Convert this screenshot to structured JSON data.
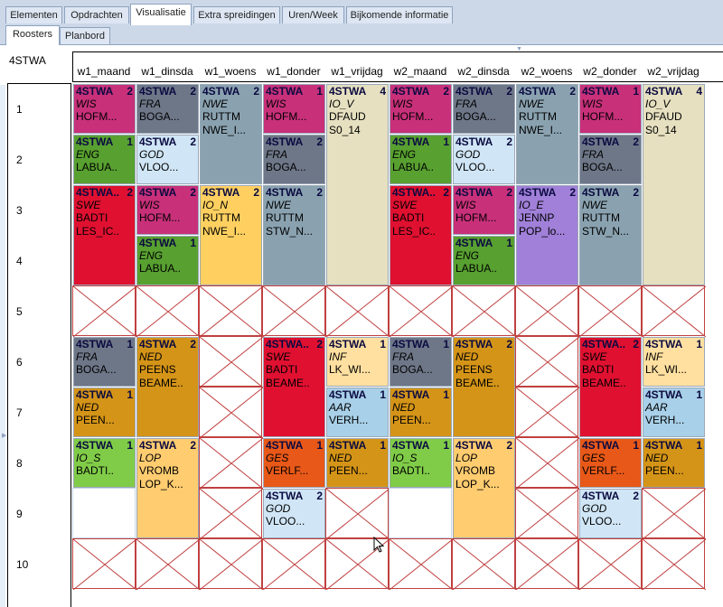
{
  "main_tabs": [
    {
      "label": "Elementen",
      "active": false
    },
    {
      "label": "Opdrachten",
      "active": false
    },
    {
      "label": "Visualisatie",
      "active": true
    },
    {
      "label": "Extra spreidingen",
      "active": false
    },
    {
      "label": "Uren/Week",
      "active": false
    },
    {
      "label": "Bijkomende informatie",
      "active": false
    }
  ],
  "sub_tabs": [
    {
      "label": "Roosters",
      "active": true
    },
    {
      "label": "Planbord",
      "active": false
    }
  ],
  "class_name": "4STWA",
  "days": [
    "w1_maand",
    "w1_dinsda",
    "w1_woens",
    "w1_donder",
    "w1_vrijdag",
    "w2_maand",
    "w2_dinsda",
    "w2_woens",
    "w2_donder",
    "w2_vrijdag"
  ],
  "periods": [
    "1",
    "2",
    "3",
    "4",
    "5",
    "6",
    "7",
    "8",
    "9",
    "10"
  ],
  "colors": {
    "WIS": "#c8307a",
    "FRA": "#6e7788",
    "NWE": "#8aa2b0",
    "IO_V": "#e6e0c0",
    "ENG": "#58a030",
    "GOD": "#d0e6f6",
    "SWE": "#e01030",
    "IO_N": "#ffd060",
    "IO_E": "#a080d8",
    "NED": "#d49418",
    "INF": "#ffe0a0",
    "AAR": "#a8d0e8",
    "IO_S": "#80cc48",
    "LOP": "#ffcc70",
    "GES": "#e85818"
  },
  "lessons": [
    {
      "day": 0,
      "start": 1,
      "len": 1,
      "cls": "4STWA",
      "count": "2",
      "subject": "WIS",
      "teacher": "HOFM..."
    },
    {
      "day": 0,
      "start": 2,
      "len": 1,
      "cls": "4STWA",
      "count": "1",
      "subject": "ENG",
      "teacher": "LABUA.."
    },
    {
      "day": 0,
      "start": 3,
      "len": 2,
      "cls": "4STWA..",
      "count": "2",
      "subject": "SWE",
      "teacher": "BADTI",
      "room": "LES_IC.."
    },
    {
      "day": 0,
      "start": 6,
      "len": 1,
      "cls": "4STWA",
      "count": "1",
      "subject": "FRA",
      "teacher": "BOGA..."
    },
    {
      "day": 0,
      "start": 7,
      "len": 1,
      "cls": "4STWA",
      "count": "1",
      "subject": "NED",
      "teacher": "PEEN..."
    },
    {
      "day": 0,
      "start": 8,
      "len": 1,
      "cls": "4STWA",
      "count": "1",
      "subject": "IO_S",
      "teacher": "BADTI.."
    },
    {
      "day": 1,
      "start": 1,
      "len": 1,
      "cls": "4STWA",
      "count": "2",
      "subject": "FRA",
      "teacher": "BOGA..."
    },
    {
      "day": 1,
      "start": 2,
      "len": 1,
      "cls": "4STWA",
      "count": "2",
      "subject": "GOD",
      "teacher": "VLOO..."
    },
    {
      "day": 1,
      "start": 3,
      "len": 1,
      "cls": "4STWA",
      "count": "2",
      "subject": "WIS",
      "teacher": "HOFM..."
    },
    {
      "day": 1,
      "start": 4,
      "len": 1,
      "cls": "4STWA",
      "count": "1",
      "subject": "ENG",
      "teacher": "LABUA.."
    },
    {
      "day": 1,
      "start": 6,
      "len": 2,
      "cls": "4STWA",
      "count": "2",
      "subject": "NED",
      "teacher": "PEENS",
      "room": "BEAME.."
    },
    {
      "day": 1,
      "start": 8,
      "len": 2,
      "cls": "4STWA",
      "count": "2",
      "subject": "LOP",
      "teacher": "VROMB",
      "room": "LOP_K..."
    },
    {
      "day": 2,
      "start": 1,
      "len": 2,
      "cls": "4STWA",
      "count": "2",
      "subject": "NWE",
      "teacher": "RUTTM",
      "room": "NWE_I..."
    },
    {
      "day": 2,
      "start": 3,
      "len": 2,
      "cls": "4STWA",
      "count": "2",
      "subject": "IO_N",
      "teacher": "RUTTM",
      "room": "NWE_I..."
    },
    {
      "day": 3,
      "start": 1,
      "len": 1,
      "cls": "4STWA",
      "count": "1",
      "subject": "WIS",
      "teacher": "HOFM..."
    },
    {
      "day": 3,
      "start": 2,
      "len": 1,
      "cls": "4STWA",
      "count": "2",
      "subject": "FRA",
      "teacher": "BOGA..."
    },
    {
      "day": 3,
      "start": 3,
      "len": 2,
      "cls": "4STWA",
      "count": "2",
      "subject": "NWE",
      "teacher": "RUTTM",
      "room": "STW_N..."
    },
    {
      "day": 3,
      "start": 6,
      "len": 2,
      "cls": "4STWA..",
      "count": "2",
      "subject": "SWE",
      "teacher": "BADTI",
      "room": "BEAME.."
    },
    {
      "day": 3,
      "start": 8,
      "len": 1,
      "cls": "4STWA",
      "count": "1",
      "subject": "GES",
      "teacher": "VERLF..."
    },
    {
      "day": 3,
      "start": 9,
      "len": 1,
      "cls": "4STWA",
      "count": "2",
      "subject": "GOD",
      "teacher": "VLOO..."
    },
    {
      "day": 4,
      "start": 1,
      "len": 4,
      "cls": "4STWA",
      "count": "4",
      "subject": "IO_V",
      "teacher": "DFAUD",
      "room": "S0_14"
    },
    {
      "day": 4,
      "start": 6,
      "len": 1,
      "cls": "4STWA",
      "count": "1",
      "subject": "INF",
      "teacher": "LK_WI..."
    },
    {
      "day": 4,
      "start": 7,
      "len": 1,
      "cls": "4STWA",
      "count": "1",
      "subject": "AAR",
      "teacher": "VERH..."
    },
    {
      "day": 4,
      "start": 8,
      "len": 1,
      "cls": "4STWA",
      "count": "1",
      "subject": "NED",
      "teacher": "PEEN..."
    },
    {
      "day": 5,
      "start": 1,
      "len": 1,
      "cls": "4STWA",
      "count": "2",
      "subject": "WIS",
      "teacher": "HOFM..."
    },
    {
      "day": 5,
      "start": 2,
      "len": 1,
      "cls": "4STWA",
      "count": "1",
      "subject": "ENG",
      "teacher": "LABUA.."
    },
    {
      "day": 5,
      "start": 3,
      "len": 2,
      "cls": "4STWA..",
      "count": "2",
      "subject": "SWE",
      "teacher": "BADTI",
      "room": "LES_IC.."
    },
    {
      "day": 5,
      "start": 6,
      "len": 1,
      "cls": "4STWA",
      "count": "1",
      "subject": "FRA",
      "teacher": "BOGA..."
    },
    {
      "day": 5,
      "start": 7,
      "len": 1,
      "cls": "4STWA",
      "count": "1",
      "subject": "NED",
      "teacher": "PEEN..."
    },
    {
      "day": 5,
      "start": 8,
      "len": 1,
      "cls": "4STWA",
      "count": "1",
      "subject": "IO_S",
      "teacher": "BADTI.."
    },
    {
      "day": 6,
      "start": 1,
      "len": 1,
      "cls": "4STWA",
      "count": "2",
      "subject": "FRA",
      "teacher": "BOGA..."
    },
    {
      "day": 6,
      "start": 2,
      "len": 1,
      "cls": "4STWA",
      "count": "2",
      "subject": "GOD",
      "teacher": "VLOO..."
    },
    {
      "day": 6,
      "start": 3,
      "len": 1,
      "cls": "4STWA",
      "count": "2",
      "subject": "WIS",
      "teacher": "HOFM..."
    },
    {
      "day": 6,
      "start": 4,
      "len": 1,
      "cls": "4STWA",
      "count": "1",
      "subject": "ENG",
      "teacher": "LABUA.."
    },
    {
      "day": 6,
      "start": 6,
      "len": 2,
      "cls": "4STWA",
      "count": "2",
      "subject": "NED",
      "teacher": "PEENS",
      "room": "BEAME.."
    },
    {
      "day": 6,
      "start": 8,
      "len": 2,
      "cls": "4STWA",
      "count": "2",
      "subject": "LOP",
      "teacher": "VROMB",
      "room": "LOP_K..."
    },
    {
      "day": 7,
      "start": 1,
      "len": 2,
      "cls": "4STWA",
      "count": "2",
      "subject": "NWE",
      "teacher": "RUTTM",
      "room": "NWE_I..."
    },
    {
      "day": 7,
      "start": 3,
      "len": 2,
      "cls": "4STWA",
      "count": "2",
      "subject": "IO_E",
      "teacher": "JENNP",
      "room": "POP_lo..."
    },
    {
      "day": 8,
      "start": 1,
      "len": 1,
      "cls": "4STWA",
      "count": "1",
      "subject": "WIS",
      "teacher": "HOFM..."
    },
    {
      "day": 8,
      "start": 2,
      "len": 1,
      "cls": "4STWA",
      "count": "2",
      "subject": "FRA",
      "teacher": "BOGA..."
    },
    {
      "day": 8,
      "start": 3,
      "len": 2,
      "cls": "4STWA",
      "count": "2",
      "subject": "NWE",
      "teacher": "RUTTM",
      "room": "STW_N..."
    },
    {
      "day": 8,
      "start": 6,
      "len": 2,
      "cls": "4STWA..",
      "count": "2",
      "subject": "SWE",
      "teacher": "BADTI",
      "room": "BEAME.."
    },
    {
      "day": 8,
      "start": 8,
      "len": 1,
      "cls": "4STWA",
      "count": "1",
      "subject": "GES",
      "teacher": "VERLF..."
    },
    {
      "day": 8,
      "start": 9,
      "len": 1,
      "cls": "4STWA",
      "count": "2",
      "subject": "GOD",
      "teacher": "VLOO..."
    },
    {
      "day": 9,
      "start": 1,
      "len": 4,
      "cls": "4STWA",
      "count": "4",
      "subject": "IO_V",
      "teacher": "DFAUD",
      "room": "S0_14"
    },
    {
      "day": 9,
      "start": 6,
      "len": 1,
      "cls": "4STWA",
      "count": "1",
      "subject": "INF",
      "teacher": "LK_WI..."
    },
    {
      "day": 9,
      "start": 7,
      "len": 1,
      "cls": "4STWA",
      "count": "1",
      "subject": "AAR",
      "teacher": "VERH..."
    },
    {
      "day": 9,
      "start": 8,
      "len": 1,
      "cls": "4STWA",
      "count": "1",
      "subject": "NED",
      "teacher": "PEEN..."
    }
  ],
  "blocked": [
    {
      "day": 0,
      "period": 5
    },
    {
      "day": 1,
      "period": 5
    },
    {
      "day": 2,
      "period": 5
    },
    {
      "day": 3,
      "period": 5
    },
    {
      "day": 4,
      "period": 5
    },
    {
      "day": 5,
      "period": 5
    },
    {
      "day": 6,
      "period": 5
    },
    {
      "day": 7,
      "period": 5
    },
    {
      "day": 8,
      "period": 5
    },
    {
      "day": 9,
      "period": 5
    },
    {
      "day": 0,
      "period": 10
    },
    {
      "day": 1,
      "period": 10
    },
    {
      "day": 2,
      "period": 10
    },
    {
      "day": 3,
      "period": 10
    },
    {
      "day": 4,
      "period": 10
    },
    {
      "day": 5,
      "period": 10
    },
    {
      "day": 6,
      "period": 10
    },
    {
      "day": 7,
      "period": 10
    },
    {
      "day": 8,
      "period": 10
    },
    {
      "day": 9,
      "period": 10
    },
    {
      "day": 2,
      "period": 6
    },
    {
      "day": 2,
      "period": 7
    },
    {
      "day": 2,
      "period": 8
    },
    {
      "day": 2,
      "period": 9
    },
    {
      "day": 7,
      "period": 6
    },
    {
      "day": 7,
      "period": 7
    },
    {
      "day": 7,
      "period": 8
    },
    {
      "day": 7,
      "period": 9
    },
    {
      "day": 4,
      "period": 9
    },
    {
      "day": 9,
      "period": 9
    }
  ],
  "empty": [
    {
      "day": 0,
      "period": 9
    },
    {
      "day": 5,
      "period": 9
    }
  ]
}
